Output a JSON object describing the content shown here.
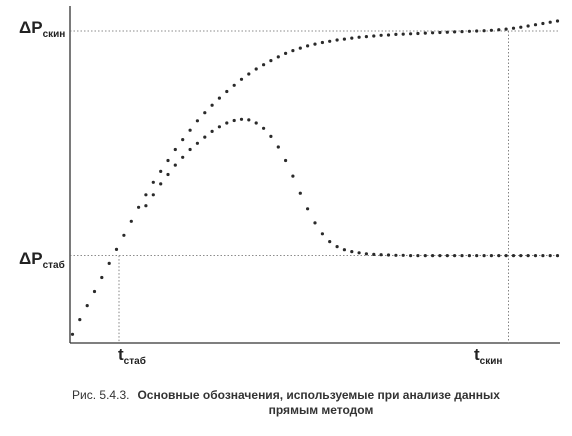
{
  "chart_data": {
    "type": "scatter",
    "title": "",
    "xlabel": "",
    "ylabel": "",
    "x_tick_labels": [
      {
        "main": "t",
        "sub": "стаб"
      },
      {
        "main": "t",
        "sub": "скин"
      }
    ],
    "y_tick_labels": [
      {
        "main": "ΔP",
        "sub": "скин"
      },
      {
        "main": "ΔP",
        "sub": "стаб"
      }
    ],
    "x_markers": {
      "t_stab": 1.0,
      "t_skin": 8.95
    },
    "y_markers": {
      "dP_stab": 0.28,
      "dP_skin": 1.0
    },
    "xlim": [
      0,
      10
    ],
    "ylim": [
      0,
      1.08
    ],
    "grid": false,
    "legend": "none",
    "series": [
      {
        "x": [
          0.05,
          0.2,
          0.35,
          0.5,
          0.65,
          0.8,
          0.95,
          1.1,
          1.25,
          1.4,
          1.55,
          1.7,
          1.85,
          2.0,
          2.15,
          2.3,
          2.45,
          2.6,
          2.75,
          2.9,
          3.05,
          3.2,
          3.35,
          3.5,
          3.65,
          3.8,
          3.95,
          4.1,
          4.25,
          4.4,
          4.55,
          4.7,
          4.85,
          5.0,
          5.15,
          5.3,
          5.45,
          5.6,
          5.75,
          5.9,
          6.05,
          6.2,
          6.35,
          6.5,
          6.65,
          6.8,
          6.95,
          7.1,
          7.25,
          7.4,
          7.55,
          7.7,
          7.85,
          8.0,
          8.15,
          8.3,
          8.45,
          8.6,
          8.75,
          8.9,
          9.05,
          9.2,
          9.35,
          9.5,
          9.65,
          9.8,
          9.95
        ],
        "y": [
          0.028,
          0.075,
          0.12,
          0.165,
          0.21,
          0.255,
          0.3,
          0.345,
          0.39,
          0.435,
          0.475,
          0.515,
          0.55,
          0.585,
          0.62,
          0.652,
          0.682,
          0.712,
          0.738,
          0.762,
          0.785,
          0.806,
          0.826,
          0.845,
          0.862,
          0.878,
          0.892,
          0.905,
          0.917,
          0.928,
          0.937,
          0.945,
          0.952,
          0.958,
          0.963,
          0.967,
          0.971,
          0.974,
          0.977,
          0.98,
          0.982,
          0.984,
          0.986,
          0.987,
          0.989,
          0.99,
          0.991,
          0.992,
          0.993,
          0.994,
          0.995,
          0.996,
          0.997,
          0.998,
          0.999,
          1.0,
          1.001,
          1.002,
          1.004,
          1.006,
          1.009,
          1.012,
          1.016,
          1.02,
          1.024,
          1.028,
          1.032
        ]
      },
      {
        "x": [
          1.55,
          1.7,
          1.85,
          2.0,
          2.15,
          2.3,
          2.45,
          2.6,
          2.75,
          2.9,
          3.05,
          3.2,
          3.35,
          3.5,
          3.65,
          3.8,
          3.95,
          4.1,
          4.25,
          4.4,
          4.55,
          4.7,
          4.85,
          5.0,
          5.15,
          5.3,
          5.45,
          5.6,
          5.75,
          5.9,
          6.05,
          6.2,
          6.35,
          6.5,
          6.65,
          6.8,
          6.95,
          7.1,
          7.25,
          7.4,
          7.55,
          7.7,
          7.85,
          8.0,
          8.15,
          8.3,
          8.45,
          8.6,
          8.75,
          8.9,
          9.05,
          9.2,
          9.35,
          9.5,
          9.65,
          9.8,
          9.95
        ],
        "y": [
          0.44,
          0.475,
          0.51,
          0.54,
          0.57,
          0.595,
          0.62,
          0.64,
          0.66,
          0.678,
          0.693,
          0.705,
          0.713,
          0.717,
          0.715,
          0.705,
          0.688,
          0.662,
          0.628,
          0.585,
          0.535,
          0.48,
          0.43,
          0.385,
          0.35,
          0.325,
          0.309,
          0.299,
          0.293,
          0.289,
          0.286,
          0.284,
          0.283,
          0.282,
          0.281,
          0.281,
          0.28,
          0.28,
          0.28,
          0.28,
          0.28,
          0.28,
          0.28,
          0.28,
          0.28,
          0.28,
          0.28,
          0.28,
          0.28,
          0.28,
          0.28,
          0.28,
          0.28,
          0.28,
          0.28,
          0.28,
          0.28
        ]
      }
    ]
  },
  "caption": {
    "prefix": "Рис. 5.4.3.",
    "line1": "Основные обозначения, используемые при анализе данных",
    "line2": "прямым методом"
  }
}
